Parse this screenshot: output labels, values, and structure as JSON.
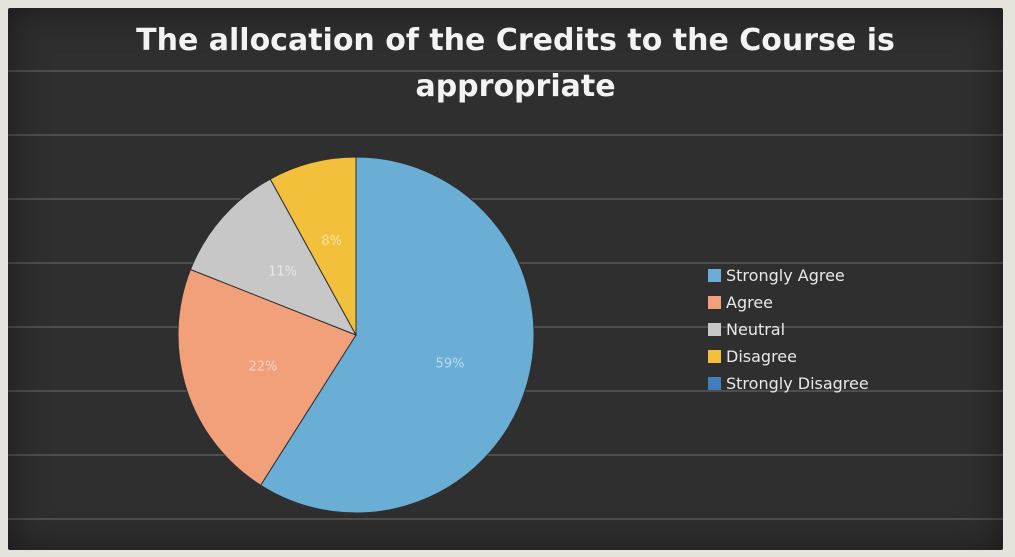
{
  "chart_data": {
    "type": "pie",
    "title": "The allocation of the Credits to the Course is appropriate",
    "categories": [
      "Strongly Agree",
      "Agree",
      "Neutral",
      "Disagree",
      "Strongly Disagree"
    ],
    "values": [
      59,
      22,
      11,
      8,
      0
    ],
    "data_labels": [
      "59%",
      "22%",
      "11%",
      "8%",
      ""
    ],
    "colors": [
      "#6aaed6",
      "#f2a07a",
      "#c7c7c7",
      "#f3c03b",
      "#3f7fc1"
    ],
    "legend": "right",
    "grid": false
  }
}
